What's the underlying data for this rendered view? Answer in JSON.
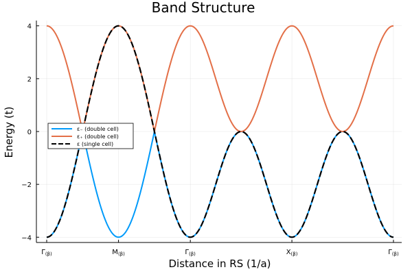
{
  "chart_data": {
    "type": "line",
    "title": "Band Structure",
    "xlabel": "Distance in RS (1/a)",
    "ylabel": "Energy (t)",
    "ylim": [
      -4.2,
      4.2
    ],
    "yticks": [
      -4,
      -2,
      0,
      2,
      4
    ],
    "ytick_labels": [
      "−4",
      "−2",
      "0",
      "2",
      "4"
    ],
    "xticks": [
      {
        "label": "Γ(β)",
        "base": "Γ",
        "sub": "(β)"
      },
      {
        "label": "M(β)",
        "base": "M",
        "sub": "(β)"
      },
      {
        "label": "Γ(β)",
        "base": "Γ",
        "sub": "(β)"
      },
      {
        "label": "X(β)",
        "base": "X",
        "sub": "(β)"
      },
      {
        "label": "Γ(β)",
        "base": "Γ",
        "sub": "(β)"
      }
    ],
    "grid": true,
    "legend_position": "center-left",
    "path": [
      {
        "from": [
          0,
          0
        ],
        "to": [
          1,
          1
        ]
      },
      {
        "from": [
          1,
          1
        ],
        "to": [
          2,
          2
        ]
      },
      {
        "from": [
          2,
          2
        ],
        "to": [
          2,
          0
        ]
      },
      {
        "from": [
          2,
          0
        ],
        "to": [
          0,
          0
        ]
      }
    ],
    "series": [
      {
        "name": "ε₋ (double cell)",
        "color": "#009AFA",
        "style": "solid",
        "band": "minus"
      },
      {
        "name": "ε₊ (double cell)",
        "color": "#E36F47",
        "style": "solid",
        "band": "plus"
      },
      {
        "name": "ε (single cell)",
        "color": "#000000",
        "style": "dashed",
        "band": "single"
      }
    ]
  }
}
